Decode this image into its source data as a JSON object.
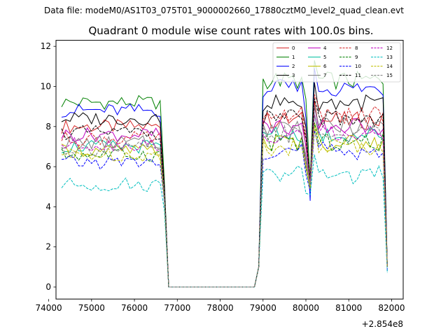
{
  "suptitle": "Data file: modeM0/AS1T03_075T01_9000002660_17880cztM0_level2_quad_clean.evt",
  "chart_data": {
    "type": "line",
    "title": "Quadrant 0 module wise count rates with 100.0s bins.",
    "xlabel": "",
    "ylabel": "",
    "x_offset_label": "+2.854e8",
    "xlim": [
      74170,
      82270
    ],
    "ylim": [
      -0.6,
      12.3
    ],
    "xticks": [
      74000,
      75000,
      76000,
      77000,
      78000,
      79000,
      80000,
      81000,
      82000
    ],
    "yticks": [
      0,
      2,
      4,
      6,
      8,
      10,
      12
    ],
    "legend_position": "top-right",
    "series": [
      {
        "name": "0",
        "color": "#d62728",
        "dash": "solid",
        "base1": 8.0,
        "base2": 8.3,
        "low": 4.6,
        "dip": 5.5,
        "end": 1.0
      },
      {
        "name": "1",
        "color": "#008000",
        "dash": "solid",
        "base1": 9.2,
        "base2": 10.3,
        "low": 5.2,
        "dip": 5.2,
        "end": 1.0
      },
      {
        "name": "2",
        "color": "#0000ff",
        "dash": "solid",
        "base1": 8.8,
        "base2": 9.9,
        "low": 4.6,
        "dip": 4.3,
        "end": 1.0
      },
      {
        "name": "3",
        "color": "#000000",
        "dash": "solid",
        "base1": 8.4,
        "base2": 9.2,
        "low": 5.0,
        "dip": 5.0,
        "end": 1.0
      },
      {
        "name": "4",
        "color": "#bf00bf",
        "dash": "solid",
        "base1": 7.6,
        "base2": 8.0,
        "low": 4.6,
        "dip": 5.2,
        "end": 1.0
      },
      {
        "name": "5",
        "color": "#00bfa0",
        "dash": "solid",
        "base1": 7.0,
        "base2": 7.6,
        "low": 4.4,
        "dip": 5.0,
        "end": 1.0
      },
      {
        "name": "6",
        "color": "#bfbf00",
        "dash": "solid",
        "base1": 6.8,
        "base2": 7.2,
        "low": 4.4,
        "dip": 4.9,
        "end": 1.0
      },
      {
        "name": "7",
        "color": "#7f7f7f",
        "dash": "solid",
        "base1": 7.2,
        "base2": 8.0,
        "low": 4.6,
        "dip": 5.2,
        "end": 1.0
      },
      {
        "name": "8",
        "color": "#d62728",
        "dash": "dashed",
        "base1": 7.4,
        "base2": 8.6,
        "low": 4.6,
        "dip": 5.2,
        "end": 1.0
      },
      {
        "name": "9",
        "color": "#008000",
        "dash": "dashed",
        "base1": 6.6,
        "base2": 7.2,
        "low": 4.4,
        "dip": 4.9,
        "end": 1.0
      },
      {
        "name": "10",
        "color": "#0000ff",
        "dash": "dashed",
        "base1": 6.2,
        "base2": 6.8,
        "low": 4.2,
        "dip": 4.8,
        "end": 0.8
      },
      {
        "name": "11",
        "color": "#000000",
        "dash": "dashed",
        "base1": 7.7,
        "base2": 8.4,
        "low": 4.8,
        "dip": 5.4,
        "end": 1.0
      },
      {
        "name": "12",
        "color": "#bf00bf",
        "dash": "dashed",
        "base1": 7.1,
        "base2": 7.6,
        "low": 4.6,
        "dip": 5.2,
        "end": 1.0
      },
      {
        "name": "13",
        "color": "#00bfbf",
        "dash": "dashed",
        "base1": 5.1,
        "base2": 5.6,
        "low": 3.8,
        "dip": 4.6,
        "end": 0.7
      },
      {
        "name": "14",
        "color": "#bfbf00",
        "dash": "dashed",
        "base1": 6.6,
        "base2": 7.0,
        "low": 4.3,
        "dip": 4.9,
        "end": 1.0
      },
      {
        "name": "15",
        "color": "#7f7f7f",
        "dash": "dashed",
        "base1": 6.9,
        "base2": 7.6,
        "low": 4.5,
        "dip": 5.1,
        "end": 1.0
      }
    ],
    "segments": {
      "seg1_start": 74300,
      "seg1_end": 76600,
      "drop_low_x": 76700,
      "zero_start": 76800,
      "zero_end": 78800,
      "rise_x": 78900,
      "seg2_start": 79000,
      "dip_x": 80100,
      "seg2_end": 81800,
      "end_x": 81900,
      "step": 100
    }
  }
}
